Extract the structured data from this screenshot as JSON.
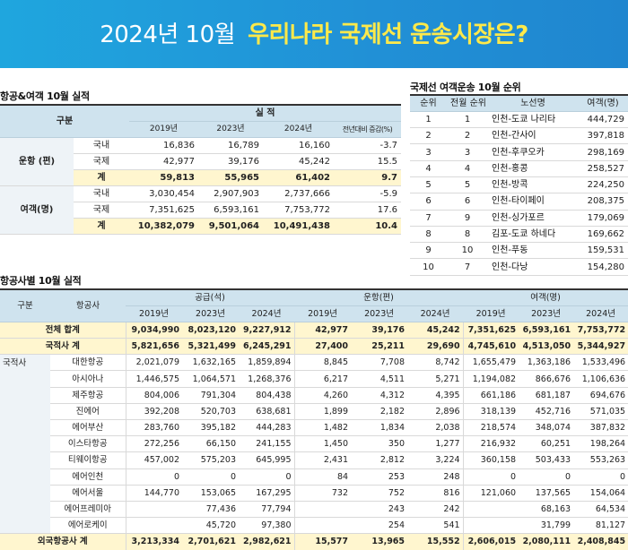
{
  "banner": {
    "date": "2024년 10월",
    "headline": "우리나라 국제선 운송시장은?"
  },
  "performance": {
    "title": "항공&여객  10월 실적",
    "header": {
      "category": "구분",
      "results": "실 적",
      "y2019": "2019년",
      "y2023": "2023년",
      "y2024": "2024년",
      "change": "전년대비 증감(%)"
    },
    "groups": [
      {
        "name": "운항 (편)",
        "rows": [
          {
            "label": "국내",
            "y2019": "16,836",
            "y2023": "16,789",
            "y2024": "16,160",
            "change": "-3.7"
          },
          {
            "label": "국제",
            "y2019": "42,977",
            "y2023": "39,176",
            "y2024": "45,242",
            "change": "15.5"
          },
          {
            "label": "계",
            "y2019": "59,813",
            "y2023": "55,965",
            "y2024": "61,402",
            "change": "9.7"
          }
        ]
      },
      {
        "name": "여객(명)",
        "rows": [
          {
            "label": "국내",
            "y2019": "3,030,454",
            "y2023": "2,907,903",
            "y2024": "2,737,666",
            "change": "-5.9"
          },
          {
            "label": "국제",
            "y2019": "7,351,625",
            "y2023": "6,593,161",
            "y2024": "7,753,772",
            "change": "17.6"
          },
          {
            "label": "계",
            "y2019": "10,382,079",
            "y2023": "9,501,064",
            "y2024": "10,491,438",
            "change": "10.4"
          }
        ]
      }
    ]
  },
  "ranking": {
    "title": "국제선 여객운송 10월 순위",
    "header": {
      "rank": "순위",
      "prev_rank": "전월 순위",
      "route": "노선명",
      "passengers": "여객(명)"
    },
    "rows": [
      {
        "rank": "1",
        "prev": "1",
        "route": "인천-도쿄 나리타",
        "pax": "444,729"
      },
      {
        "rank": "2",
        "prev": "2",
        "route": "인천-간사이",
        "pax": "397,818"
      },
      {
        "rank": "3",
        "prev": "3",
        "route": "인천-후쿠오카",
        "pax": "298,169"
      },
      {
        "rank": "4",
        "prev": "4",
        "route": "인천-홍콩",
        "pax": "258,527"
      },
      {
        "rank": "5",
        "prev": "5",
        "route": "인천-방콕",
        "pax": "224,250"
      },
      {
        "rank": "6",
        "prev": "6",
        "route": "인천-타이페이",
        "pax": "208,375"
      },
      {
        "rank": "7",
        "prev": "9",
        "route": "인천-싱가포르",
        "pax": "179,069"
      },
      {
        "rank": "8",
        "prev": "8",
        "route": "김포-도쿄 하네다",
        "pax": "169,662"
      },
      {
        "rank": "9",
        "prev": "10",
        "route": "인천-푸동",
        "pax": "159,531"
      },
      {
        "rank": "10",
        "prev": "7",
        "route": "인천-다낭",
        "pax": "154,280"
      }
    ]
  },
  "airlines": {
    "title": "항공사별 10월 실적",
    "header": {
      "category": "구분",
      "airline": "항공사",
      "supply": "공급(석)",
      "flights": "운항(편)",
      "passengers": "여객(명)",
      "y2019": "2019년",
      "y2023": "2023년",
      "y2024": "2024년"
    },
    "totals": [
      {
        "label": "전체 합계",
        "s": [
          "9,034,990",
          "8,023,120",
          "9,227,912"
        ],
        "f": [
          "42,977",
          "39,176",
          "45,242"
        ],
        "p": [
          "7,351,625",
          "6,593,161",
          "7,753,772"
        ]
      },
      {
        "label": "국적사 계",
        "s": [
          "5,821,656",
          "5,321,499",
          "6,245,291"
        ],
        "f": [
          "27,400",
          "25,211",
          "29,690"
        ],
        "p": [
          "4,745,610",
          "4,513,050",
          "5,344,927"
        ]
      }
    ],
    "group_label": "국적사",
    "rows": [
      {
        "name": "대한항공",
        "s": [
          "2,021,079",
          "1,632,165",
          "1,859,894"
        ],
        "f": [
          "8,845",
          "7,708",
          "8,742"
        ],
        "p": [
          "1,655,479",
          "1,363,186",
          "1,533,496"
        ]
      },
      {
        "name": "아시아나",
        "s": [
          "1,446,575",
          "1,064,571",
          "1,268,376"
        ],
        "f": [
          "6,217",
          "4,511",
          "5,271"
        ],
        "p": [
          "1,194,082",
          "866,676",
          "1,106,636"
        ]
      },
      {
        "name": "제주항공",
        "s": [
          "804,006",
          "791,304",
          "804,438"
        ],
        "f": [
          "4,260",
          "4,312",
          "4,395"
        ],
        "p": [
          "661,186",
          "681,187",
          "694,676"
        ]
      },
      {
        "name": "진에어",
        "s": [
          "392,208",
          "520,703",
          "638,681"
        ],
        "f": [
          "1,899",
          "2,182",
          "2,896"
        ],
        "p": [
          "318,139",
          "452,716",
          "571,035"
        ]
      },
      {
        "name": "에어부산",
        "s": [
          "283,760",
          "395,182",
          "444,283"
        ],
        "f": [
          "1,482",
          "1,834",
          "2,038"
        ],
        "p": [
          "218,574",
          "348,074",
          "387,832"
        ]
      },
      {
        "name": "이스타항공",
        "s": [
          "272,256",
          "66,150",
          "241,155"
        ],
        "f": [
          "1,450",
          "350",
          "1,277"
        ],
        "p": [
          "216,932",
          "60,251",
          "198,264"
        ]
      },
      {
        "name": "티웨이항공",
        "s": [
          "457,002",
          "575,203",
          "645,995"
        ],
        "f": [
          "2,431",
          "2,812",
          "3,224"
        ],
        "p": [
          "360,158",
          "503,433",
          "553,263"
        ]
      },
      {
        "name": "에어인천",
        "s": [
          "0",
          "0",
          "0"
        ],
        "f": [
          "84",
          "253",
          "248"
        ],
        "p": [
          "0",
          "0",
          "0"
        ]
      },
      {
        "name": "에어서울",
        "s": [
          "144,770",
          "153,065",
          "167,295"
        ],
        "f": [
          "732",
          "752",
          "816"
        ],
        "p": [
          "121,060",
          "137,565",
          "154,064"
        ]
      },
      {
        "name": "에어프레미아",
        "s": [
          "",
          "77,436",
          "77,794"
        ],
        "f": [
          "",
          "243",
          "242"
        ],
        "p": [
          "",
          "68,163",
          "64,534"
        ]
      },
      {
        "name": "에어로케이",
        "s": [
          "",
          "45,720",
          "97,380"
        ],
        "f": [
          "",
          "254",
          "541"
        ],
        "p": [
          "",
          "31,799",
          "81,127"
        ]
      }
    ],
    "foreign": {
      "label": "외국항공사 계",
      "s": [
        "3,213,334",
        "2,701,621",
        "2,982,621"
      ],
      "f": [
        "15,577",
        "13,965",
        "15,552"
      ],
      "p": [
        "2,606,015",
        "2,080,111",
        "2,408,845"
      ]
    }
  }
}
